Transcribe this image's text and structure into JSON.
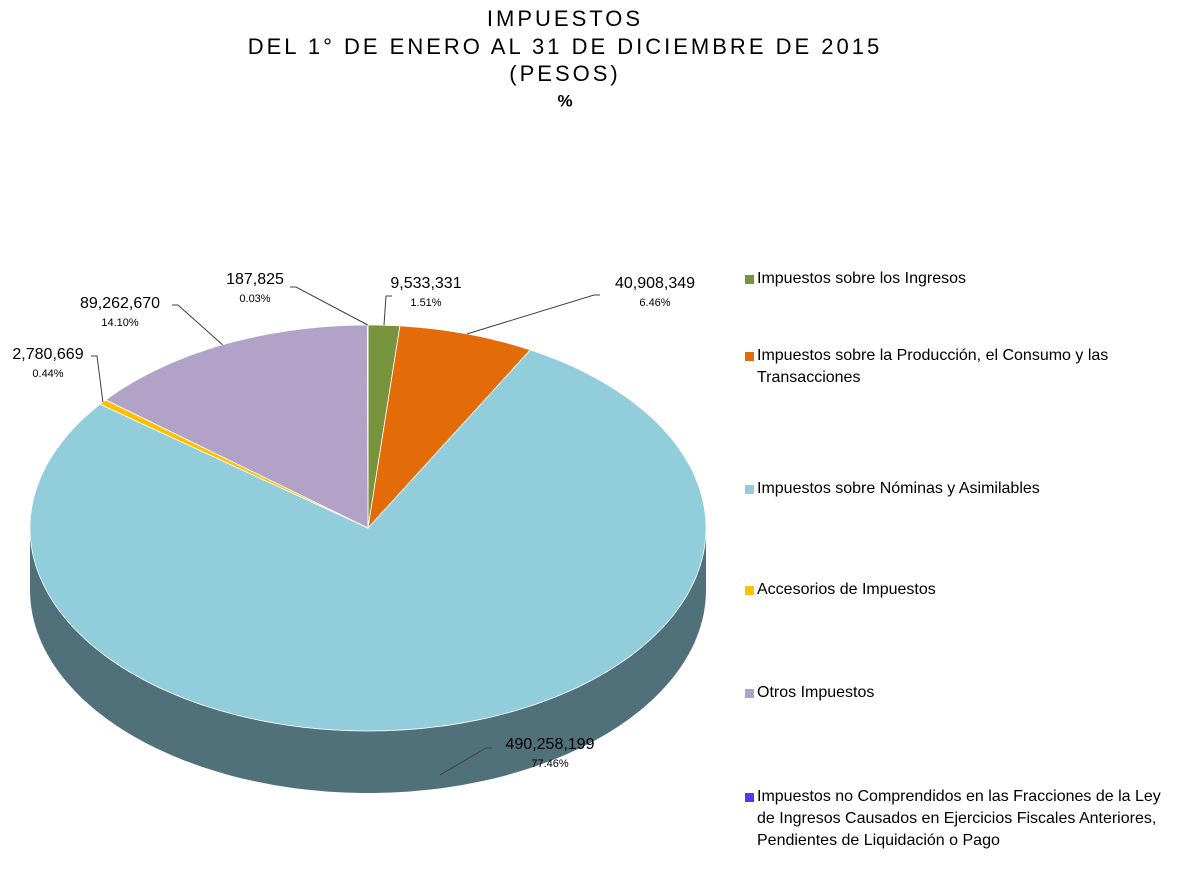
{
  "chart_data": {
    "type": "pie",
    "title": [
      "IMPUESTOS",
      "DEL 1° DE ENERO AL 31 DE DICIEMBRE DE 2015",
      "(PESOS)",
      "%"
    ],
    "categories": [
      "Impuestos sobre los Ingresos",
      "Impuestos sobre la Producción, el Consumo y las Transacciones",
      "Impuestos sobre Nóminas y Asimilables",
      "Accesorios de Impuestos",
      "Otros Impuestos",
      "Impuestos no Comprendidos en las Fracciones de la Ley de Ingresos Causados en Ejercicios Fiscales Anteriores, Pendientes de Liquidación o Pago"
    ],
    "values": [
      9533331,
      40908349,
      490258199,
      2780669,
      89262670,
      187825
    ],
    "value_labels": [
      "9,533,331",
      "40,908,349",
      "490,258,199",
      "2,780,669",
      "89,262,670",
      "187,825"
    ],
    "percents": [
      1.51,
      6.46,
      77.46,
      0.44,
      14.1,
      0.03
    ],
    "percent_labels": [
      "1.51%",
      "6.46%",
      "77.46%",
      "0.44%",
      "14.10%",
      "0.03%"
    ],
    "colors": [
      "#77933c",
      "#e36c09",
      "#92cddc",
      "#ffc000",
      "#b3a2c7",
      "#4f3cf0"
    ],
    "legend": "right"
  }
}
